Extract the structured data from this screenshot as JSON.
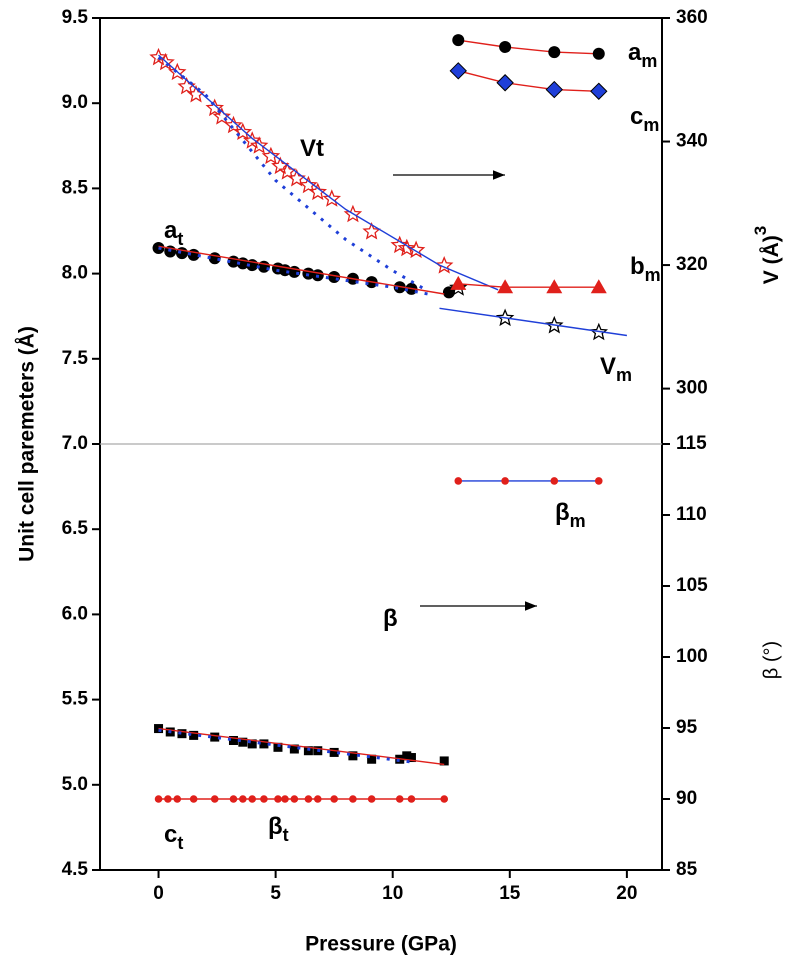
{
  "chart_data": {
    "type": "scatter",
    "x_label": "Pressure (GPa)",
    "y_label": "Unit cell paremeters (Å)",
    "y2_label": "V (Å)",
    "y2_label_sup": "3",
    "y3_label": "β (°)",
    "xlim": [
      -2.5,
      21.5
    ],
    "xticks": [
      0,
      5,
      10,
      15,
      20
    ],
    "ylim": [
      4.5,
      9.5
    ],
    "yticks": [
      4.5,
      {
        "value": 5,
        "label": "5.0"
      },
      5.5,
      {
        "value": 6,
        "label": "6.0"
      },
      6.5,
      {
        "value": 7,
        "label": "7.0"
      },
      7.5,
      {
        "value": 8,
        "label": "8.0"
      },
      8.5,
      {
        "value": 9,
        "label": "9.0"
      },
      9.5
    ],
    "y2lim": [
      300,
      360
    ],
    "y2ticks": [
      300,
      320,
      340,
      360
    ],
    "y3lim": [
      85,
      115
    ],
    "y3ticks": [
      85,
      90,
      95,
      100,
      105,
      110,
      115
    ],
    "series": [
      {
        "axis": "y",
        "marker": "circle",
        "color": "#000000",
        "line_color": null,
        "x": [
          0,
          0.5,
          1,
          1.5,
          2.4,
          3.2,
          3.6,
          4.0,
          4.5,
          5.1,
          5.4,
          5.8,
          6.4,
          6.8,
          7.5,
          8.3,
          9.1,
          10.3,
          10.8,
          12.4
        ],
        "values": [
          8.15,
          8.13,
          8.12,
          8.11,
          8.09,
          8.07,
          8.06,
          8.05,
          8.04,
          8.03,
          8.02,
          8.01,
          8.0,
          7.99,
          7.98,
          7.97,
          7.95,
          7.92,
          7.91,
          7.89
        ]
      },
      {
        "axis": "y",
        "marker": null,
        "line_color": "#e0201b",
        "x": [
          0,
          12.2
        ],
        "values": [
          8.16,
          7.88
        ]
      },
      {
        "axis": "y",
        "marker": null,
        "line_color": "#1f3fd8",
        "dash": true,
        "x": [
          0,
          5,
          10,
          11.5
        ],
        "values": [
          8.15,
          8.02,
          7.92,
          7.88
        ]
      },
      {
        "axis": "y",
        "marker": "square",
        "color": "#000000",
        "line_color": null,
        "x": [
          0,
          0.5,
          1,
          1.5,
          2.4,
          3.2,
          3.6,
          4.0,
          4.5,
          5.1,
          5.8,
          6.4,
          6.8,
          7.5,
          8.3,
          9.1,
          10.3,
          10.6,
          10.8,
          12.2
        ],
        "values": [
          5.33,
          5.31,
          5.3,
          5.29,
          5.28,
          5.26,
          5.25,
          5.24,
          5.24,
          5.22,
          5.21,
          5.2,
          5.2,
          5.19,
          5.17,
          5.15,
          5.15,
          5.17,
          5.16,
          5.14
        ]
      },
      {
        "axis": "y",
        "marker": null,
        "line_color": "#e0201b",
        "x": [
          0,
          12.2
        ],
        "values": [
          5.33,
          5.12
        ]
      },
      {
        "axis": "y",
        "marker": null,
        "line_color": "#1f3fd8",
        "dash": true,
        "x": [
          0,
          11
        ],
        "values": [
          5.32,
          5.13
        ]
      },
      {
        "axis": "y2",
        "marker": "star",
        "color": "#e0201b",
        "line_color": null,
        "x": [
          0,
          0.3,
          0.8,
          1.2,
          1.6,
          2.4,
          2.7,
          3.2,
          3.6,
          4.0,
          4.3,
          4.8,
          5.2,
          5.5,
          5.9,
          6.4,
          6.8,
          7.4,
          8.3,
          9.1,
          10.3,
          10.6,
          11.0,
          12.2
        ],
        "values": [
          353.6,
          352.8,
          351.2,
          348.9,
          347.6,
          345.4,
          344.0,
          342.6,
          341.5,
          340.1,
          339.3,
          337.6,
          336.0,
          335.1,
          334.0,
          332.9,
          331.8,
          330.7,
          328.2,
          325.4,
          323.2,
          322.7,
          322.4,
          319.9
        ]
      },
      {
        "axis": "y2",
        "marker": null,
        "line_color": "#1f3fd8",
        "x": [
          0,
          4,
          8,
          12,
          14.5
        ],
        "values": [
          354,
          340.5,
          329,
          320,
          316
        ]
      },
      {
        "axis": "y2",
        "marker": null,
        "line_color": "#1f3fd8",
        "dash": true,
        "x": [
          0,
          2,
          5,
          8,
          10,
          11.5
        ],
        "values": [
          353.6,
          347.6,
          333.7,
          324.1,
          319.1,
          315.8
        ]
      },
      {
        "axis": "y2",
        "marker": "star",
        "color": "#000000",
        "line_color": null,
        "x": [
          12.8,
          14.8,
          16.9,
          18.8
        ],
        "values": [
          316.3,
          311.4,
          310.2,
          309.1
        ]
      },
      {
        "axis": "y2",
        "marker": null,
        "line_color": "#1f3fd8",
        "x": [
          12,
          20
        ],
        "values": [
          313.0,
          308.6
        ]
      },
      {
        "axis": "y",
        "marker": "circle",
        "color": "#000000",
        "line_color": "#e0201b",
        "x": [
          12.8,
          14.8,
          16.9,
          18.8
        ],
        "values": [
          9.37,
          9.33,
          9.3,
          9.29
        ]
      },
      {
        "axis": "y",
        "marker": "diamond",
        "color": "#1f3fd8",
        "line_color": "#e0201b",
        "x": [
          12.8,
          14.8,
          16.9,
          18.8
        ],
        "values": [
          9.19,
          9.12,
          9.08,
          9.07
        ]
      },
      {
        "axis": "y",
        "marker": "triangle",
        "color": "#e0201b",
        "line_color": "#e0201b",
        "x": [
          12.8,
          14.8,
          16.9,
          18.8
        ],
        "values": [
          7.94,
          7.92,
          7.92,
          7.92
        ]
      },
      {
        "axis": "y3",
        "marker": "dot",
        "color": "#e0201b",
        "line_color": "#1f3fd8",
        "x": [
          12.8,
          14.8,
          16.9,
          18.8
        ],
        "values": [
          112.4,
          112.4,
          112.4,
          112.4
        ]
      },
      {
        "axis": "y3",
        "marker": "dot",
        "color": "#e0201b",
        "line_color": "#e0201b",
        "x": [
          0,
          0.4,
          0.8,
          1.5,
          2.4,
          3.2,
          3.6,
          4.0,
          4.5,
          5.1,
          5.4,
          5.8,
          6.4,
          6.8,
          7.5,
          8.3,
          9.1,
          10.3,
          10.8,
          12.2
        ],
        "values": [
          90,
          90,
          90,
          90,
          90,
          90,
          90,
          90,
          90,
          90,
          90,
          90,
          90,
          90,
          90,
          90,
          90,
          90,
          90,
          90
        ]
      }
    ],
    "annotations": [
      {
        "text": "a",
        "sub": "t"
      },
      {
        "text": "c",
        "sub": "t"
      },
      {
        "text": "Vt"
      },
      {
        "text": "a",
        "sub": "m"
      },
      {
        "text": "c",
        "sub": "m"
      },
      {
        "text": "b",
        "sub": "m"
      },
      {
        "text": "V",
        "sub": "m"
      },
      {
        "text": "β",
        "sub": "m"
      },
      {
        "text": "β"
      },
      {
        "text": "β",
        "sub": "t"
      }
    ]
  }
}
